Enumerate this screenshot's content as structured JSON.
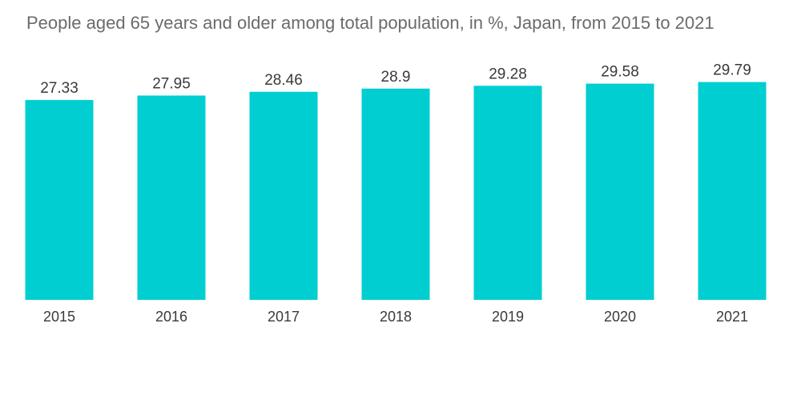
{
  "chart_data": {
    "type": "bar",
    "title": "People aged 65 years and older among total population, in %, Japan, from 2015 to 2021",
    "categories": [
      "2015",
      "2016",
      "2017",
      "2018",
      "2019",
      "2020",
      "2021"
    ],
    "values": [
      27.33,
      27.95,
      28.46,
      28.9,
      29.28,
      29.58,
      29.79
    ],
    "value_labels": [
      "27.33",
      "27.95",
      "28.46",
      "28.9",
      "29.28",
      "29.58",
      "29.79"
    ],
    "ylim": [
      0,
      35
    ],
    "grid": false,
    "data_labels": true,
    "bar_color": "#00CED1"
  }
}
